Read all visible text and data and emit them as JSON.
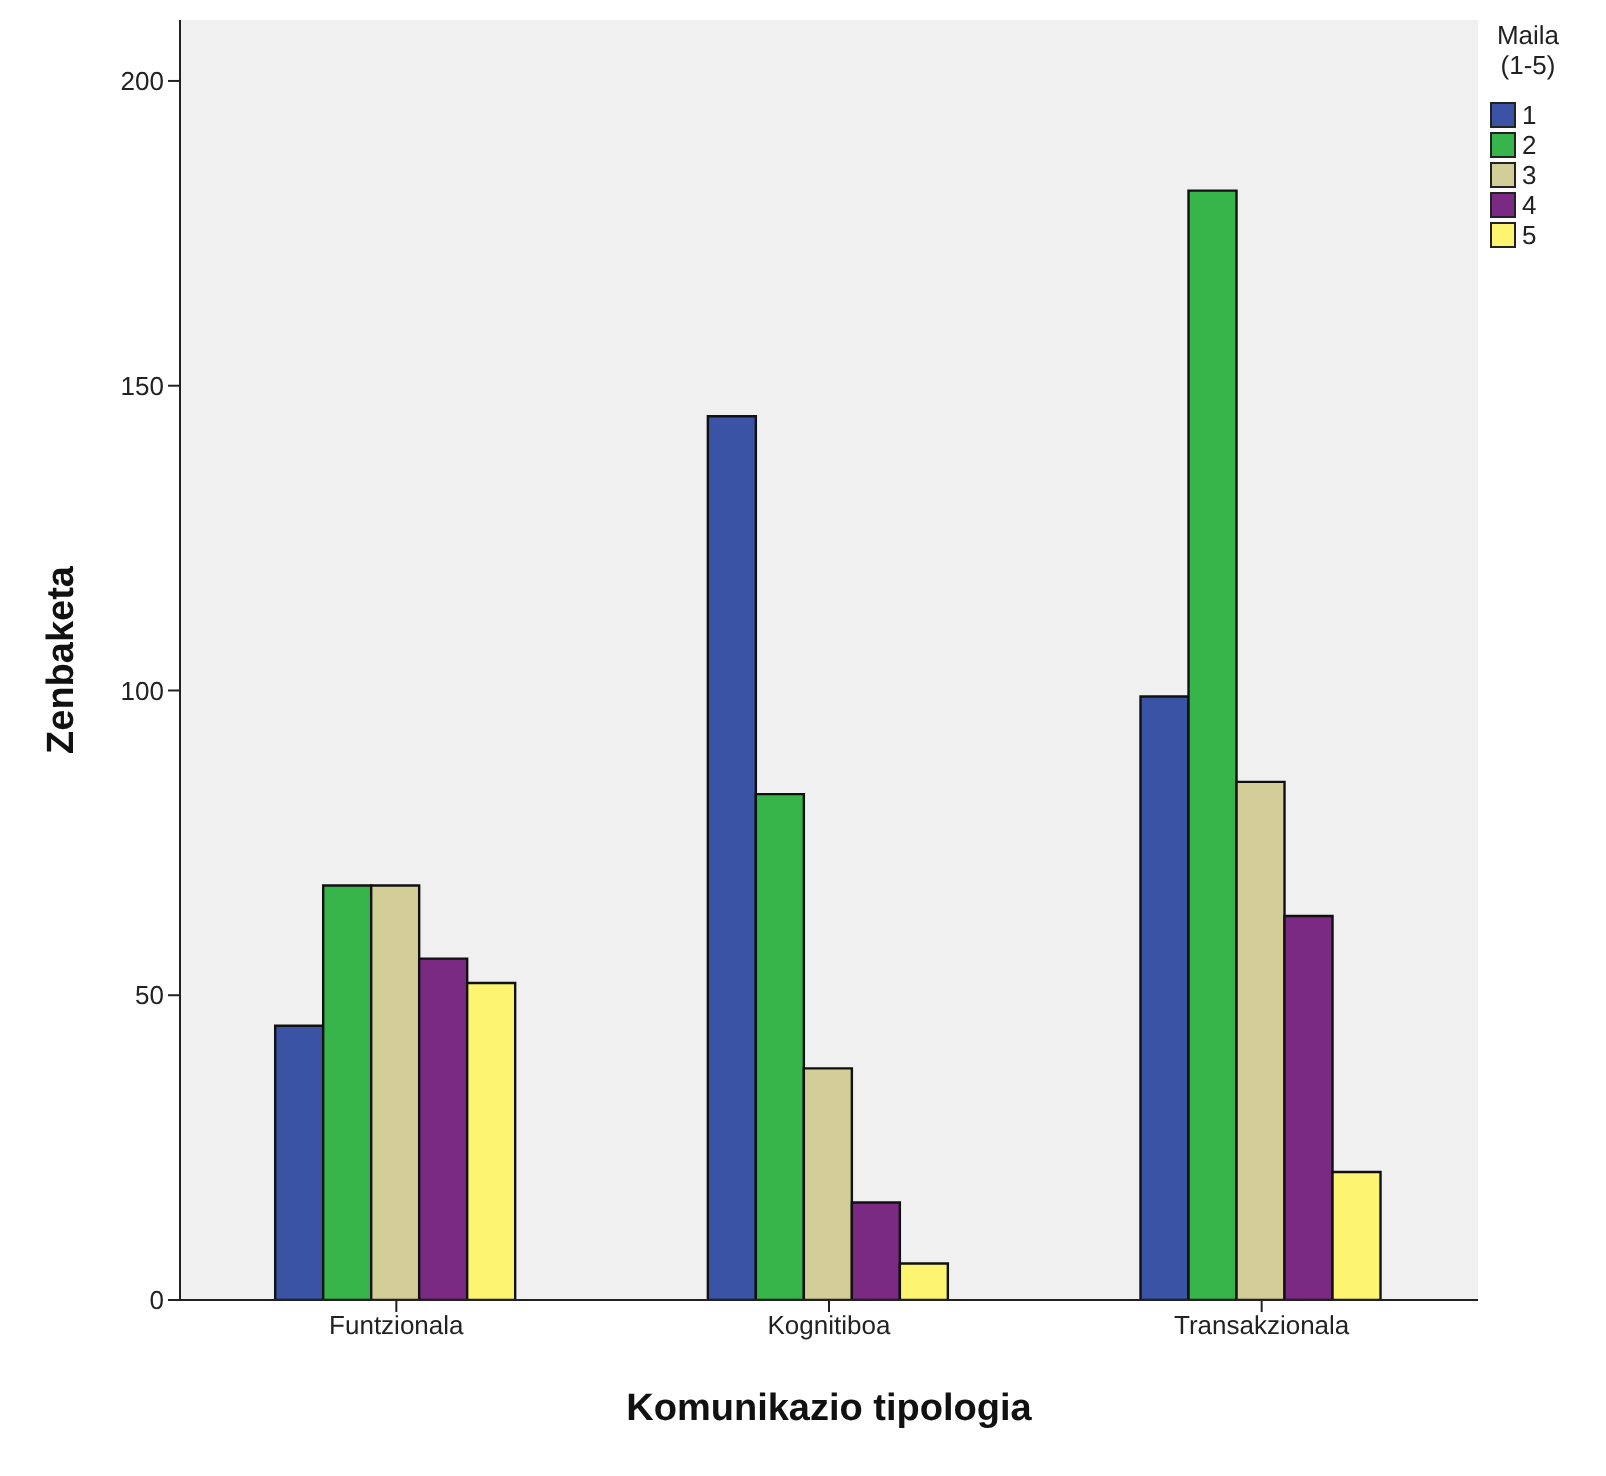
{
  "chart_data": {
    "type": "bar",
    "xlabel": "Komunikazio tipologia",
    "ylabel": "Zenbaketa",
    "legend_title": "Maila (1-5)",
    "legend": "top right",
    "categories": [
      "Funtzionala",
      "Kognitiboa",
      "Transakzionala"
    ],
    "series": [
      {
        "name": "1",
        "color": "#3a53a4",
        "values": [
          45,
          145,
          99
        ]
      },
      {
        "name": "2",
        "color": "#38b54a",
        "values": [
          68,
          83,
          182
        ]
      },
      {
        "name": "3",
        "color": "#d3ce97",
        "values": [
          68,
          38,
          85
        ]
      },
      {
        "name": "4",
        "color": "#7b2a83",
        "values": [
          56,
          16,
          63
        ]
      },
      {
        "name": "5",
        "color": "#fdf56f",
        "values": [
          52,
          6,
          21
        ]
      }
    ],
    "ylim": [
      0,
      210
    ],
    "yticks": [
      0,
      50,
      100,
      150,
      200
    ]
  }
}
